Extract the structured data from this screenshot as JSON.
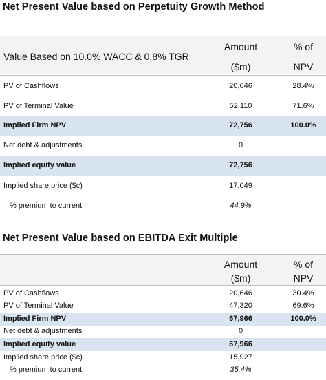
{
  "perpetuity": {
    "title": "Net Present Value based on Perpetuity Growth Method",
    "header": {
      "label": "Value Based on 10.0% WACC & 0.8% TGR",
      "amount_line1": "Amount",
      "amount_line2": "($m)",
      "pct_line1": "% of",
      "pct_line2": "NPV"
    },
    "rows": [
      {
        "label": "PV of Cashflows",
        "amount": "20,646",
        "pct": "28.4%"
      },
      {
        "label": "PV of Terminal Value",
        "amount": "52,110",
        "pct": "71.6%"
      },
      {
        "label": "Implied Firm NPV",
        "amount": "72,756",
        "pct": "100.0%"
      },
      {
        "label": "Net debt & adjustments",
        "amount": "0",
        "pct": ""
      },
      {
        "label": "Implied equity value",
        "amount": "72,756",
        "pct": ""
      },
      {
        "label": "Implied share price ($c)",
        "amount": "17,049",
        "pct": ""
      },
      {
        "label": "% premium to current",
        "amount": "44.9%",
        "pct": ""
      }
    ]
  },
  "exit_multiple": {
    "title": "Net Present Value based on EBITDA Exit Multiple",
    "header": {
      "amount_line1": "Amount",
      "amount_line2": "($m)",
      "pct_line1": "% of",
      "pct_line2": "NPV"
    },
    "rows": [
      {
        "label": "PV of Cashflows",
        "amount": "20,646",
        "pct": "30.4%"
      },
      {
        "label": "PV of Terminal Value",
        "amount": "47,320",
        "pct": "69.6%"
      },
      {
        "label": "Implied Firm NPV",
        "amount": "67,966",
        "pct": "100.0%"
      },
      {
        "label": "Net debt & adjustments",
        "amount": "0",
        "pct": ""
      },
      {
        "label": "Implied equity value",
        "amount": "67,966",
        "pct": ""
      },
      {
        "label": "Implied share price ($c)",
        "amount": "15,927",
        "pct": ""
      },
      {
        "label": "% premium to current",
        "amount": "35.4%",
        "pct": ""
      }
    ]
  }
}
